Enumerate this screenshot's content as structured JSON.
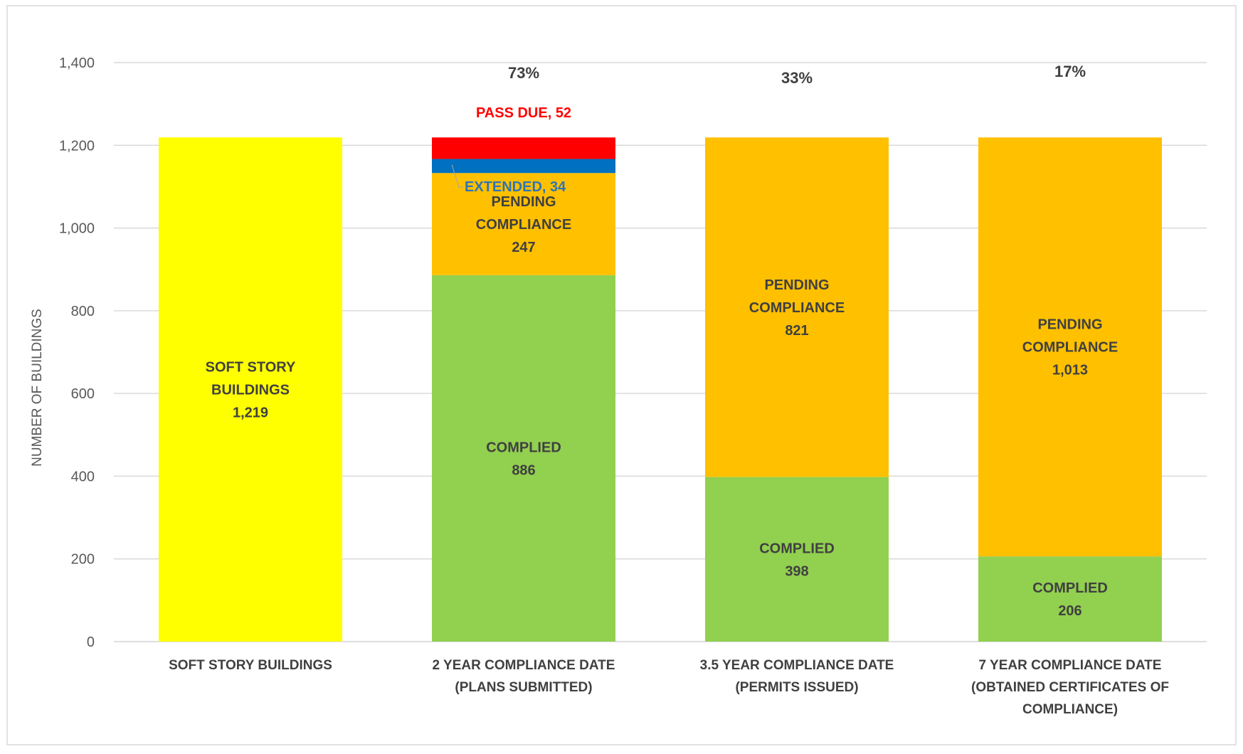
{
  "chart_data": {
    "type": "bar",
    "stacked": true,
    "title": "",
    "xlabel": "",
    "ylabel": "NUMBER OF BUILDINGS",
    "ylim": [
      0,
      1400
    ],
    "y_ticks": [
      "0",
      "200",
      "400",
      "600",
      "800",
      "1,000",
      "1,200",
      "1,400"
    ],
    "y_tick_values": [
      0,
      200,
      400,
      600,
      800,
      1000,
      1200,
      1400
    ],
    "grid": true,
    "legend": "none",
    "categories": [
      [
        "SOFT STORY BUILDINGS"
      ],
      [
        "2 YEAR COMPLIANCE DATE",
        "(PLANS SUBMITTED)"
      ],
      [
        "3.5 YEAR COMPLIANCE DATE",
        "(PERMITS ISSUED)"
      ],
      [
        "7 YEAR COMPLIANCE DATE",
        "(OBTAINED CERTIFICATES OF",
        "COMPLIANCE)"
      ]
    ],
    "percent_labels": [
      "",
      "73%",
      "33%",
      "17%"
    ],
    "bars": [
      [
        {
          "value": 1219,
          "color": "#ffff00",
          "label": [
            "SOFT STORY",
            "BUILDINGS",
            "1,219"
          ]
        }
      ],
      [
        {
          "value": 886,
          "color": "#92d050",
          "label": [
            "COMPLIED",
            "886"
          ]
        },
        {
          "value": 247,
          "color": "#ffc000",
          "label": [
            "PENDING",
            "COMPLIANCE",
            "247"
          ]
        },
        {
          "value": 34,
          "color": "#0070c0",
          "label": [
            "EXTENDED, 34"
          ],
          "label_color": "#2e75b6",
          "callout": true
        },
        {
          "value": 52,
          "color": "#ff0000",
          "label": [
            "PASS DUE, 52"
          ],
          "label_color": "#ff0000",
          "label_above": true
        }
      ],
      [
        {
          "value": 398,
          "color": "#92d050",
          "label": [
            "COMPLIED",
            "398"
          ]
        },
        {
          "value": 821,
          "color": "#ffc000",
          "label": [
            "PENDING",
            "COMPLIANCE",
            "821"
          ]
        }
      ],
      [
        {
          "value": 206,
          "color": "#92d050",
          "label": [
            "COMPLIED",
            "206"
          ]
        },
        {
          "value": 1013,
          "color": "#ffc000",
          "label": [
            "PENDING",
            "COMPLIANCE",
            "1,013"
          ]
        }
      ]
    ]
  }
}
